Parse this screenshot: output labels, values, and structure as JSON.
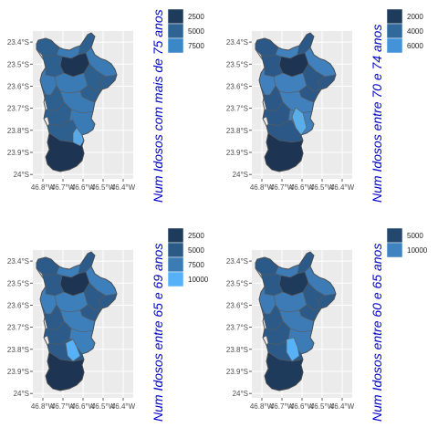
{
  "chart_data": [
    {
      "type": "choropleth-map",
      "legend_title": "Num Idosos com mais de 75 anos",
      "legend": [
        {
          "label": "2500",
          "value": 2500,
          "color": "#1f3b5b"
        },
        {
          "label": "5000",
          "value": 5000,
          "color": "#2e6394"
        },
        {
          "label": "7500",
          "value": 7500,
          "color": "#3b88c9"
        }
      ],
      "y_ticks": [
        "23.4°S",
        "23.5°S",
        "23.6°S",
        "23.7°S",
        "23.8°S",
        "23.9°S",
        "24°S"
      ],
      "x_ticks": [
        "46.8°W",
        "46.7°W",
        "46.6°W",
        "46.5°W",
        "46.4°W"
      ],
      "xlim": [
        -46.85,
        -46.35
      ],
      "ylim": [
        -24.02,
        -23.35
      ],
      "grid": true
    },
    {
      "type": "choropleth-map",
      "legend_title": "Num Idosos entre 70 e 74 anos",
      "legend": [
        {
          "label": "2000",
          "value": 2000,
          "color": "#1f3b5b"
        },
        {
          "label": "4000",
          "value": 4000,
          "color": "#30699c"
        },
        {
          "label": "6000",
          "value": 6000,
          "color": "#4393d8"
        }
      ],
      "y_ticks": [
        "23.4°S",
        "23.5°S",
        "23.6°S",
        "23.7°S",
        "23.8°S",
        "23.9°S",
        "24°S"
      ],
      "x_ticks": [
        "46.8°W",
        "46.7°W",
        "46.6°W",
        "46.5°W",
        "46.4°W"
      ],
      "xlim": [
        -46.85,
        -46.35
      ],
      "ylim": [
        -24.02,
        -23.35
      ],
      "grid": true
    },
    {
      "type": "choropleth-map",
      "legend_title": "Num Idosos entre 65 e 69 anos",
      "legend": [
        {
          "label": "2500",
          "value": 2500,
          "color": "#1f3b5b"
        },
        {
          "label": "5000",
          "value": 5000,
          "color": "#2b5a86"
        },
        {
          "label": "7500",
          "value": 7500,
          "color": "#3b7cb5"
        },
        {
          "label": "10000",
          "value": 10000,
          "color": "#56b1f7"
        }
      ],
      "y_ticks": [
        "23.4°S",
        "23.5°S",
        "23.6°S",
        "23.7°S",
        "23.8°S",
        "23.9°S",
        "24°S"
      ],
      "x_ticks": [
        "46.8°W",
        "46.7°W",
        "46.6°W",
        "46.5°W",
        "46.4°W"
      ],
      "xlim": [
        -46.85,
        -46.35
      ],
      "ylim": [
        -24.02,
        -23.35
      ],
      "grid": true
    },
    {
      "type": "choropleth-map",
      "legend_title": "Num Idosos entre 60 e 65 anos",
      "legend": [
        {
          "label": "5000",
          "value": 5000,
          "color": "#24476e"
        },
        {
          "label": "10000",
          "value": 10000,
          "color": "#3f83c0"
        }
      ],
      "y_ticks": [
        "23.4°S",
        "23.5°S",
        "23.6°S",
        "23.7°S",
        "23.8°S",
        "23.9°S",
        "24°S"
      ],
      "x_ticks": [
        "46.8°W",
        "46.7°W",
        "46.6°W",
        "46.5°W",
        "46.4°W"
      ],
      "xlim": [
        -46.85,
        -46.35
      ],
      "ylim": [
        -24.02,
        -23.35
      ],
      "grid": true
    }
  ]
}
